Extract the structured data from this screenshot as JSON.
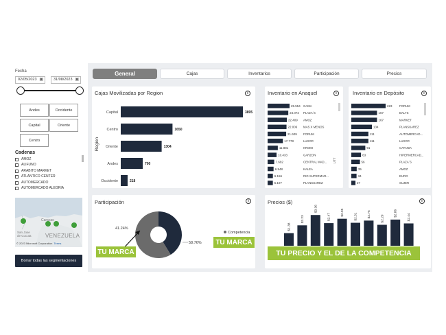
{
  "filters": {
    "fecha_label": "Fecha",
    "date_start": "02/05/2023",
    "date_end": "31/08/2023",
    "regions": [
      "Andes",
      "Occidente",
      "Capital",
      "Oriente",
      "Centro"
    ],
    "cadenas_title": "Cadenas",
    "cadenas": [
      "AMOZ",
      "ALIFUNO",
      "ARABITO MARKET",
      "ATLANTICO CENTER",
      "AUTOMERCADO",
      "AUTOMERCADO ALEGRIA"
    ],
    "map_label": "VENEZUELA",
    "map_credit": "© 2023 Microsoft Corporation",
    "map_terms": "Terms",
    "clear_button": "Borrar todas las segmentaciones"
  },
  "tabs": [
    "General",
    "Cajas",
    "Inventarios",
    "Participación",
    "Precios"
  ],
  "colors": {
    "bar": "#1f2a3c",
    "accent_green": "#9bc33a",
    "donut_gray": "#6b6b6b",
    "tab_active": "#7f7f7f"
  },
  "cajas": {
    "title": "Cajas Movilizadas por Region",
    "axis_label": "Region",
    "chart_data": {
      "type": "bar",
      "orientation": "horizontal",
      "categories": [
        "Capital",
        "Centro",
        "Oriente",
        "Andes",
        "Occidente"
      ],
      "values": [
        3895,
        1650,
        1304,
        700,
        218
      ],
      "labels": [
        "3895",
        "1650",
        "1304",
        "700",
        "218"
      ]
    }
  },
  "anaquel": {
    "title": "Inventario en Anaquel",
    "axis_label": "UTT",
    "chart_data": {
      "type": "bar",
      "orientation": "horizontal",
      "categories": [
        "GAMA",
        "PLAZA´S",
        "AMOZ",
        "MAS X MENOS",
        "FORUM",
        "LUXOR",
        "KROMI",
        "GARZON",
        "CENTRAL MAD...",
        "KALEA",
        "RIO SUPERMAR...",
        "PLANSUAREZ"
      ],
      "values": [
        25554,
        24072,
        22409,
        22006,
        21609,
        17778,
        11881,
        10433,
        7692,
        6948,
        6156,
        6107
      ],
      "labels": [
        "25.554",
        "24.072",
        "22.409",
        "22.006",
        "21.609",
        "17.778",
        "11.881",
        "10.433",
        "7.692",
        "6.948",
        "6.156",
        "6.107"
      ]
    }
  },
  "deposito": {
    "title": "Inventario en Depósito",
    "chart_data": {
      "type": "bar",
      "orientation": "horizontal",
      "categories": [
        "FORUM",
        "BALYS",
        "MARKET",
        "PLANSUAREZ",
        "AUTOMERCAD...",
        "LUXOR",
        "CATANIA",
        "HIPERMERCAD...",
        "PLAZA´S",
        "AMOZ",
        "EURO",
        "SUJER"
      ],
      "values": [
        223,
        167,
        167,
        134,
        111,
        111,
        91,
        63,
        56,
        35,
        34,
        27
      ],
      "labels": [
        "223",
        "167",
        "167",
        "134",
        "111",
        "111",
        "91",
        "63",
        "56",
        "35",
        "34",
        "27"
      ]
    }
  },
  "participacion": {
    "title": "Participación",
    "chart_data": {
      "type": "pie",
      "donut": true,
      "slices": [
        {
          "label": "41.24%",
          "value": 41.24,
          "color": "#1f2a3c"
        },
        {
          "name": "Competencia",
          "label": "58.76%",
          "value": 58.76,
          "color": "#6b6b6b"
        }
      ]
    },
    "legend_competencia": "Competencia",
    "tu_marca_left": "TU MARCA",
    "tu_marca_right": "TU MARCA"
  },
  "precios": {
    "title": "Precios ($)",
    "chart_data": {
      "type": "bar",
      "values": [
        1.38,
        2.23,
        3.36,
        2.47,
        2.95,
        2.51,
        2.75,
        2.29,
        2.86,
        2.44
      ],
      "labels": [
        "$1.38",
        "$2.23",
        "$3.36",
        "$2.47",
        "$2.95",
        "$2.51",
        "$2.75",
        "$2.29",
        "$2.86",
        "$2.44"
      ],
      "ylim": [
        0,
        3.6
      ]
    },
    "banner": "TU PRECIO Y EL DE LA COMPETENCIA"
  }
}
